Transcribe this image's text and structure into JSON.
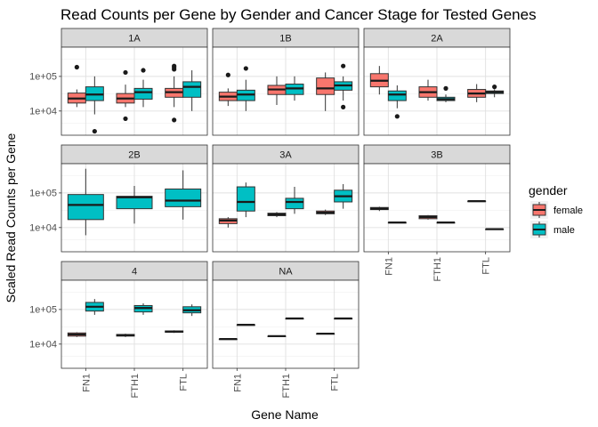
{
  "chart_data": {
    "type": "boxplot",
    "title": "Read Counts per Gene by Gender and Cancer Stage for Tested Genes",
    "xlabel": "Gene Name",
    "ylabel": "Scaled Read Counts per Gene",
    "y_scale": "log10",
    "ylim": [
      2000,
      700000
    ],
    "y_ticks": [
      {
        "value": 10000,
        "label": "1e+04"
      },
      {
        "value": 100000,
        "label": "1e+05"
      }
    ],
    "categories": [
      "FN1",
      "FTH1",
      "FTL"
    ],
    "legend": {
      "title": "gender",
      "placement": "right",
      "entries": [
        {
          "name": "female",
          "color": "#f8766d"
        },
        {
          "name": "male",
          "color": "#00bfc4"
        }
      ]
    },
    "grid": true,
    "facets": [
      {
        "label": "1A",
        "boxes": [
          {
            "gene": "FN1",
            "gender": "female",
            "min": 13000,
            "q1": 17000,
            "median": 23000,
            "q3": 33000,
            "max": 42000,
            "outliers": [
              185000
            ]
          },
          {
            "gene": "FN1",
            "gender": "male",
            "min": 8000,
            "q1": 20000,
            "median": 30000,
            "q3": 50000,
            "max": 100000,
            "outliers": [
              2600
            ]
          },
          {
            "gene": "FTH1",
            "gender": "female",
            "min": 13000,
            "q1": 17000,
            "median": 23000,
            "q3": 32000,
            "max": 58000,
            "outliers": [
              130000,
              6000
            ]
          },
          {
            "gene": "FTH1",
            "gender": "male",
            "min": 13000,
            "q1": 22000,
            "median": 35000,
            "q3": 45000,
            "max": 80000,
            "outliers": [
              150000
            ]
          },
          {
            "gene": "FTL",
            "gender": "female",
            "min": 13000,
            "q1": 25000,
            "median": 35000,
            "q3": 45000,
            "max": 100000,
            "outliers": [
              200000,
              180000,
              160000,
              5500
            ]
          },
          {
            "gene": "FTL",
            "gender": "male",
            "min": 10000,
            "q1": 25000,
            "median": 50000,
            "q3": 70000,
            "max": 150000,
            "outliers": []
          }
        ]
      },
      {
        "label": "1B",
        "boxes": [
          {
            "gene": "FN1",
            "gender": "female",
            "min": 14000,
            "q1": 20000,
            "median": 26000,
            "q3": 35000,
            "max": 45000,
            "outliers": [
              110000
            ]
          },
          {
            "gene": "FN1",
            "gender": "male",
            "min": 10000,
            "q1": 20000,
            "median": 30000,
            "q3": 40000,
            "max": 80000,
            "outliers": [
              170000
            ]
          },
          {
            "gene": "FTH1",
            "gender": "female",
            "min": 15000,
            "q1": 30000,
            "median": 42000,
            "q3": 55000,
            "max": 100000,
            "outliers": []
          },
          {
            "gene": "FTH1",
            "gender": "male",
            "min": 20000,
            "q1": 30000,
            "median": 45000,
            "q3": 60000,
            "max": 100000,
            "outliers": []
          },
          {
            "gene": "FTL",
            "gender": "female",
            "min": 10000,
            "q1": 30000,
            "median": 45000,
            "q3": 90000,
            "max": 130000,
            "outliers": []
          },
          {
            "gene": "FTL",
            "gender": "male",
            "min": 20000,
            "q1": 40000,
            "median": 55000,
            "q3": 70000,
            "max": 100000,
            "outliers": [
              200000,
              13000
            ]
          }
        ]
      },
      {
        "label": "2A",
        "boxes": [
          {
            "gene": "FN1",
            "gender": "female",
            "min": 30000,
            "q1": 50000,
            "median": 75000,
            "q3": 120000,
            "max": 200000,
            "outliers": []
          },
          {
            "gene": "FN1",
            "gender": "male",
            "min": 12000,
            "q1": 20000,
            "median": 30000,
            "q3": 38000,
            "max": 55000,
            "outliers": [
              7000
            ]
          },
          {
            "gene": "FTH1",
            "gender": "female",
            "min": 20000,
            "q1": 25000,
            "median": 35000,
            "q3": 50000,
            "max": 80000,
            "outliers": []
          },
          {
            "gene": "FTH1",
            "gender": "male",
            "min": 18000,
            "q1": 20000,
            "median": 22000,
            "q3": 25000,
            "max": 30000,
            "outliers": [
              45000
            ]
          },
          {
            "gene": "FTL",
            "gender": "female",
            "min": 18000,
            "q1": 25000,
            "median": 32000,
            "q3": 42000,
            "max": 60000,
            "outliers": []
          },
          {
            "gene": "FTL",
            "gender": "male",
            "min": 25000,
            "q1": 32000,
            "median": 35000,
            "q3": 38000,
            "max": 42000,
            "outliers": [
              50000
            ]
          }
        ]
      },
      {
        "label": "2B",
        "boxes": [
          {
            "gene": "FN1",
            "gender": "male",
            "min": 6000,
            "q1": 17000,
            "median": 45000,
            "q3": 90000,
            "max": 500000,
            "outliers": []
          },
          {
            "gene": "FTH1",
            "gender": "male",
            "min": 13000,
            "q1": 35000,
            "median": 75000,
            "q3": 80000,
            "max": 160000,
            "outliers": []
          },
          {
            "gene": "FTL",
            "gender": "male",
            "min": 17000,
            "q1": 40000,
            "median": 60000,
            "q3": 130000,
            "max": 450000,
            "outliers": []
          }
        ]
      },
      {
        "label": "3A",
        "boxes": [
          {
            "gene": "FN1",
            "gender": "female",
            "min": 10000,
            "q1": 13000,
            "median": 16000,
            "q3": 18000,
            "max": 20000,
            "outliers": []
          },
          {
            "gene": "FN1",
            "gender": "male",
            "min": 20000,
            "q1": 30000,
            "median": 55000,
            "q3": 150000,
            "max": 200000,
            "outliers": []
          },
          {
            "gene": "FTH1",
            "gender": "female",
            "min": 20000,
            "q1": 22000,
            "median": 24000,
            "q3": 26000,
            "max": 28000,
            "outliers": []
          },
          {
            "gene": "FTH1",
            "gender": "male",
            "min": 25000,
            "q1": 35000,
            "median": 55000,
            "q3": 70000,
            "max": 150000,
            "outliers": []
          },
          {
            "gene": "FTL",
            "gender": "female",
            "min": 23000,
            "q1": 25000,
            "median": 27000,
            "q3": 30000,
            "max": 33000,
            "outliers": []
          },
          {
            "gene": "FTL",
            "gender": "male",
            "min": 35000,
            "q1": 55000,
            "median": 80000,
            "q3": 120000,
            "max": 180000,
            "outliers": []
          }
        ]
      },
      {
        "label": "3B",
        "boxes": [
          {
            "gene": "FN1",
            "gender": "female",
            "min": 30000,
            "q1": 33000,
            "median": 35000,
            "q3": 38000,
            "max": 40000,
            "outliers": []
          },
          {
            "gene": "FN1",
            "gender": "male",
            "min": 14000,
            "q1": 14000,
            "median": 14000,
            "q3": 14000,
            "max": 14000,
            "outliers": []
          },
          {
            "gene": "FTH1",
            "gender": "female",
            "min": 17000,
            "q1": 18000,
            "median": 20000,
            "q3": 22000,
            "max": 23000,
            "outliers": []
          },
          {
            "gene": "FTH1",
            "gender": "male",
            "min": 14000,
            "q1": 14000,
            "median": 14000,
            "q3": 14000,
            "max": 14000,
            "outliers": []
          },
          {
            "gene": "FTL",
            "gender": "female",
            "min": 58000,
            "q1": 58000,
            "median": 58000,
            "q3": 58000,
            "max": 58000,
            "outliers": []
          },
          {
            "gene": "FTL",
            "gender": "male",
            "min": 9000,
            "q1": 9000,
            "median": 9000,
            "q3": 9000,
            "max": 9000,
            "outliers": []
          }
        ]
      },
      {
        "label": "4",
        "boxes": [
          {
            "gene": "FN1",
            "gender": "female",
            "min": 16000,
            "q1": 17000,
            "median": 19000,
            "q3": 21000,
            "max": 22000,
            "outliers": []
          },
          {
            "gene": "FN1",
            "gender": "male",
            "min": 70000,
            "q1": 90000,
            "median": 120000,
            "q3": 160000,
            "max": 200000,
            "outliers": []
          },
          {
            "gene": "FTH1",
            "gender": "female",
            "min": 16000,
            "q1": 17000,
            "median": 18000,
            "q3": 19000,
            "max": 20000,
            "outliers": []
          },
          {
            "gene": "FTH1",
            "gender": "male",
            "min": 70000,
            "q1": 85000,
            "median": 110000,
            "q3": 130000,
            "max": 150000,
            "outliers": []
          },
          {
            "gene": "FTL",
            "gender": "female",
            "min": 21000,
            "q1": 22000,
            "median": 23000,
            "q3": 24000,
            "max": 25000,
            "outliers": []
          },
          {
            "gene": "FTL",
            "gender": "male",
            "min": 65000,
            "q1": 80000,
            "median": 95000,
            "q3": 120000,
            "max": 140000,
            "outliers": []
          }
        ]
      },
      {
        "label": "NA",
        "boxes": [
          {
            "gene": "FN1",
            "gender": "female",
            "min": 14000,
            "q1": 14000,
            "median": 14000,
            "q3": 14000,
            "max": 14000,
            "outliers": []
          },
          {
            "gene": "FN1",
            "gender": "male",
            "min": 36000,
            "q1": 36000,
            "median": 36000,
            "q3": 36000,
            "max": 36000,
            "outliers": []
          },
          {
            "gene": "FTH1",
            "gender": "female",
            "min": 17000,
            "q1": 17000,
            "median": 17000,
            "q3": 17000,
            "max": 17000,
            "outliers": []
          },
          {
            "gene": "FTH1",
            "gender": "male",
            "min": 55000,
            "q1": 55000,
            "median": 55000,
            "q3": 55000,
            "max": 55000,
            "outliers": []
          },
          {
            "gene": "FTL",
            "gender": "female",
            "min": 20000,
            "q1": 20000,
            "median": 20000,
            "q3": 20000,
            "max": 20000,
            "outliers": []
          },
          {
            "gene": "FTL",
            "gender": "male",
            "min": 55000,
            "q1": 55000,
            "median": 55000,
            "q3": 55000,
            "max": 55000,
            "outliers": []
          }
        ]
      }
    ]
  }
}
